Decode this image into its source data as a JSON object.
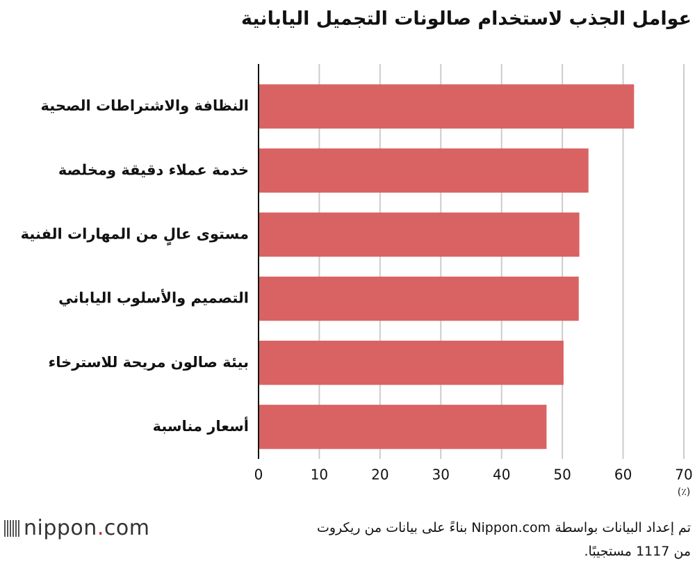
{
  "chart_data": {
    "type": "bar",
    "orientation": "horizontal",
    "title": "عوامل الجذب لاستخدام صالونات التجميل اليابانية",
    "categories": [
      "النظافة والاشتراطات الصحية",
      "خدمة عملاء دقيقة ومخلصة",
      "مستوى عالٍ من المهارات الفنية",
      "التصميم والأسلوب الياباني",
      "بيئة صالون مريحة للاسترخاء",
      "أسعار مناسبة"
    ],
    "values": [
      61.8,
      54.3,
      52.8,
      52.7,
      50.2,
      47.4
    ],
    "color": "#d96363",
    "xlim": [
      0,
      70
    ],
    "xticks": [
      0,
      10,
      20,
      30,
      40,
      50,
      60,
      70
    ],
    "unit_label": "(٪)",
    "grid": true
  },
  "source": [
    "تم إعداد البيانات بواسطة Nippon.com بناءً على بيانات من ريكروت",
    "من 1117 مستجيبًا."
  ],
  "logo": {
    "name": "nippon",
    "dot": ".",
    "suffix": "com"
  }
}
